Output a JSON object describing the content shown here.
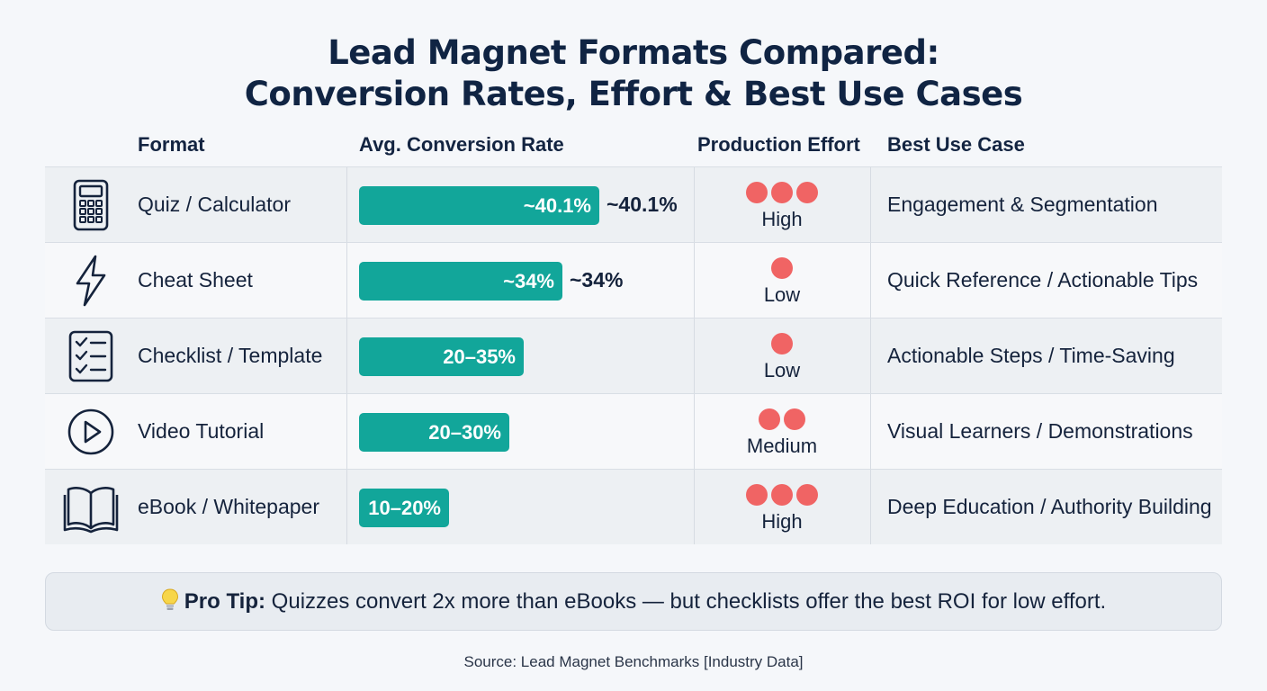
{
  "title": {
    "line1": "Lead Magnet Formats Compared:",
    "line2": "Conversion Rates, Effort & Best Use Cases"
  },
  "headers": {
    "format": "Format",
    "rate": "Avg. Conversion Rate",
    "effort": "Production Effort",
    "usecase": "Best Use Case"
  },
  "rows": [
    {
      "icon": "calculator-icon",
      "format": "Quiz / Calculator",
      "bar_label": "~40.1%",
      "outside_label": "~40.1%",
      "value": 40.1,
      "effort_level": 3,
      "effort": "High",
      "usecase": "Engagement & Segmentation"
    },
    {
      "icon": "lightning-icon",
      "format": "Cheat Sheet",
      "bar_label": "~34%",
      "outside_label": "~34%",
      "value": 34,
      "effort_level": 1,
      "effort": "Low",
      "usecase": "Quick Reference / Actionable Tips"
    },
    {
      "icon": "checklist-icon",
      "format": "Checklist / Template",
      "bar_label": "20–35%",
      "outside_label": "",
      "value": 27.5,
      "effort_level": 1,
      "effort": "Low",
      "usecase": "Actionable Steps / Time-Saving"
    },
    {
      "icon": "play-icon",
      "format": "Video Tutorial",
      "bar_label": "20–30%",
      "outside_label": "",
      "value": 25,
      "effort_level": 2,
      "effort": "Medium",
      "usecase": "Visual Learners / Demonstrations"
    },
    {
      "icon": "book-icon",
      "format": "eBook / Whitepaper",
      "bar_label": "10–20%",
      "outside_label": "",
      "value": 15,
      "effort_level": 3,
      "effort": "High",
      "usecase": "Deep Education / Authority Building"
    }
  ],
  "chart_data": {
    "type": "bar",
    "categories": [
      "Quiz / Calculator",
      "Cheat Sheet",
      "Checklist / Template",
      "Video Tutorial",
      "eBook / Whitepaper"
    ],
    "values": [
      40.1,
      34,
      27.5,
      25,
      15
    ],
    "ranges": [
      null,
      null,
      [
        20,
        35
      ],
      [
        20,
        30
      ],
      [
        10,
        20
      ]
    ],
    "title": "Lead Magnet Formats Compared: Conversion Rates, Effort & Best Use Cases",
    "xlabel": "Avg. Conversion Rate",
    "ylabel": "Format"
  },
  "tip": {
    "bold": "Pro Tip:",
    "text": " Quizzes convert 2x more than eBooks — but checklists offer the best ROI for low effort."
  },
  "source": "Source: Lead Magnet Benchmarks [Industry Data]",
  "colors": {
    "bar": "#12a69a",
    "dot": "#f06464",
    "title": "#102443"
  }
}
